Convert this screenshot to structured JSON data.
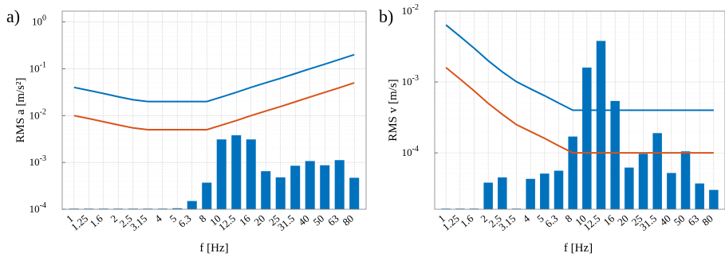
{
  "panels": [
    {
      "label": "a)"
    },
    {
      "label": "b)"
    }
  ],
  "colors": {
    "bar": "#0072BD",
    "line1": "#0072BD",
    "line2": "#D95319"
  },
  "chart_data": [
    {
      "type": "bar",
      "xlabel": "f [Hz]",
      "ylabel": "RMS a [m/s²]",
      "yscale": "log",
      "ylim": [
        0.0001,
        1.7
      ],
      "grid": true,
      "categories": [
        "1",
        "1.25",
        "1.6",
        "2",
        "2.5",
        "3.15",
        "4",
        "5",
        "6.3",
        "8",
        "10",
        "12.5",
        "16",
        "20",
        "25",
        "31.5",
        "40",
        "50",
        "63",
        "80"
      ],
      "y_ticks": [
        {
          "value": 0.0001,
          "base": "10",
          "exp": "-4"
        },
        {
          "value": 0.001,
          "base": "10",
          "exp": "-3"
        },
        {
          "value": 0.01,
          "base": "10",
          "exp": "-2"
        },
        {
          "value": 0.1,
          "base": "10",
          "exp": "-1"
        },
        {
          "value": 1,
          "base": "10",
          "exp": "0"
        }
      ],
      "bars": [
        0.0001,
        0.0001,
        0.0001,
        0.0001,
        0.0001,
        0.0001,
        0.0001,
        0.000105,
        0.00015,
        0.00037,
        0.0031,
        0.0038,
        0.0031,
        0.00065,
        0.00048,
        0.00085,
        0.00107,
        0.00087,
        0.00112,
        0.00047
      ],
      "lines": [
        {
          "values": [
            0.04,
            0.0346,
            0.0296,
            0.0253,
            0.0218,
            0.02,
            0.02,
            0.02,
            0.02,
            0.02,
            0.025,
            0.0313,
            0.04,
            0.05,
            0.0625,
            0.0788,
            0.1,
            0.125,
            0.158,
            0.2
          ]
        },
        {
          "values": [
            0.01,
            0.00866,
            0.0074,
            0.00632,
            0.00545,
            0.005,
            0.005,
            0.005,
            0.005,
            0.005,
            0.00625,
            0.00781,
            0.01,
            0.0125,
            0.0156,
            0.0197,
            0.025,
            0.0313,
            0.0394,
            0.05
          ]
        }
      ]
    },
    {
      "type": "bar",
      "xlabel": "f [Hz]",
      "ylabel": "RMS v [m/s]",
      "yscale": "log",
      "ylim": [
        1.6e-05,
        0.01
      ],
      "grid": true,
      "categories": [
        "1",
        "1.25",
        "1.6",
        "2",
        "2.5",
        "3.15",
        "4",
        "5",
        "6.3",
        "8",
        "10",
        "12.5",
        "16",
        "20",
        "25",
        "31.5",
        "40",
        "50",
        "63",
        "80"
      ],
      "y_ticks": [
        {
          "value": 0.0001,
          "base": "10",
          "exp": "-4"
        },
        {
          "value": 0.001,
          "base": "10",
          "exp": "-3"
        },
        {
          "value": 0.01,
          "base": "10",
          "exp": "-2"
        }
      ],
      "bars": [
        1.6e-05,
        1.6e-05,
        1.6e-05,
        3.8e-05,
        4.5e-05,
        1.6e-05,
        4.3e-05,
        5.1e-05,
        5.6e-05,
        0.00017,
        0.0016,
        0.0038,
        0.00054,
        6.2e-05,
        9.7e-05,
        0.00019,
        5.2e-05,
        0.000105,
        3.7e-05,
        3e-05
      ],
      "lines": [
        {
          "values": [
            0.0064,
            0.0044,
            0.003,
            0.002,
            0.00139,
            0.00101,
            0.0008,
            0.00064,
            0.000505,
            0.0004,
            0.0004,
            0.0004,
            0.0004,
            0.0004,
            0.0004,
            0.0004,
            0.0004,
            0.0004,
            0.0004,
            0.0004
          ]
        },
        {
          "values": [
            0.0016,
            0.0011,
            0.00075,
            0.0005,
            0.00035,
            0.00025,
            0.0002,
            0.00016,
            0.000126,
            0.0001,
            0.0001,
            0.0001,
            0.0001,
            0.0001,
            0.0001,
            0.0001,
            0.0001,
            0.0001,
            0.0001,
            0.0001
          ]
        }
      ]
    }
  ]
}
